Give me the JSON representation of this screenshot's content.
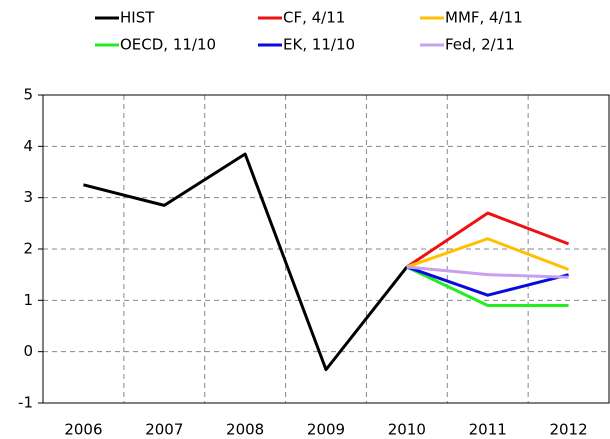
{
  "chart_data": {
    "type": "line",
    "categories": [
      "2006",
      "2007",
      "2008",
      "2009",
      "2010",
      "2011",
      "2012"
    ],
    "series": [
      {
        "name": "HIST",
        "color": "#000000",
        "values": [
          3.25,
          2.85,
          3.85,
          -0.35,
          1.65,
          null,
          null
        ]
      },
      {
        "name": "CF, 4/11",
        "color": "#ee1111",
        "values": [
          null,
          null,
          null,
          null,
          1.65,
          2.7,
          2.1
        ]
      },
      {
        "name": "MMF, 4/11",
        "color": "#ffc000",
        "values": [
          null,
          null,
          null,
          null,
          1.65,
          2.2,
          1.6
        ]
      },
      {
        "name": "OECD, 11/10",
        "color": "#22ee22",
        "values": [
          null,
          null,
          null,
          null,
          1.65,
          0.9,
          0.9
        ]
      },
      {
        "name": "EK, 11/10",
        "color": "#0a0ae0",
        "values": [
          null,
          null,
          null,
          null,
          1.65,
          1.1,
          1.5
        ]
      },
      {
        "name": "Fed, 2/11",
        "color": "#c8a0f0",
        "values": [
          null,
          null,
          null,
          null,
          1.65,
          1.5,
          1.45
        ]
      }
    ],
    "ylim": [
      -1,
      5
    ],
    "yticks": [
      -1,
      0,
      1,
      2,
      3,
      4,
      5
    ],
    "grid": true
  }
}
